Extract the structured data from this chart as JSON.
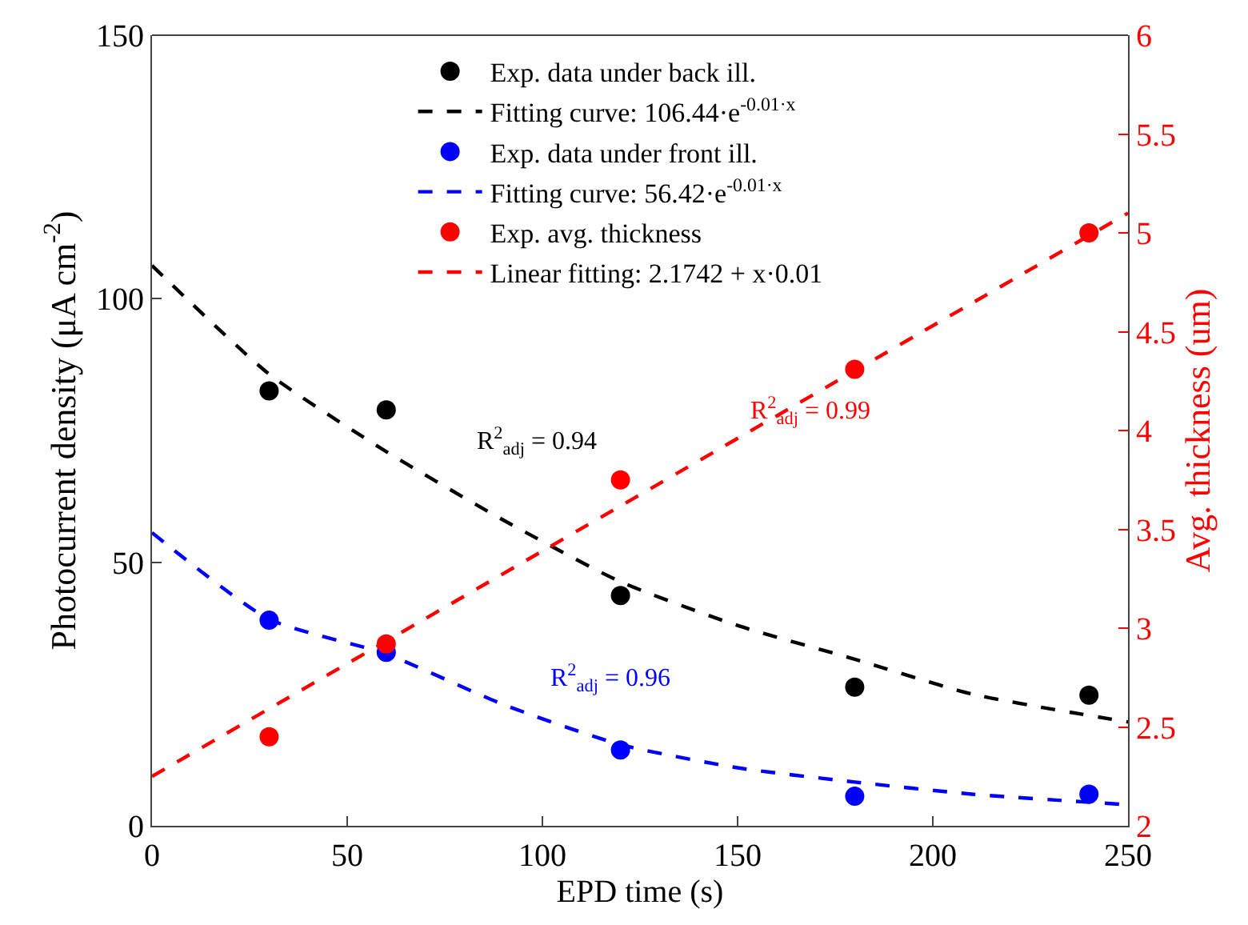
{
  "chart_data": {
    "type": "scatter",
    "xlabel": "EPD time (s)",
    "ylabel": "Photocurrent density (μA cm$^{-2}$)",
    "y2label": "Avg. thickness (um)",
    "xlim": [
      0,
      250
    ],
    "xticks": [
      0,
      50,
      100,
      150,
      200,
      250
    ],
    "ylim": [
      0,
      150
    ],
    "yticks": [
      0,
      50,
      100,
      150
    ],
    "y2lim": [
      2,
      6
    ],
    "y2ticks": [
      2,
      {
        "value": 2.5,
        "label": "2.5"
      },
      3,
      {
        "value": 3.5,
        "label": "3.5"
      },
      4,
      {
        "value": 4.5,
        "label": "4.5"
      },
      5,
      {
        "value": 5.5,
        "label": "5.5"
      },
      6
    ],
    "legend": "top",
    "series": [
      {
        "name": "Exp. data under back ill.",
        "marker": "circle",
        "color": "#000000",
        "x": [
          30,
          60,
          120,
          180,
          240
        ],
        "values": [
          82.5,
          78.9,
          43.7,
          26.3,
          24.8
        ]
      },
      {
        "name": "Fitting curve: 106.44·e$^{-0.01·x}$",
        "type": "line",
        "marker": "none",
        "line_style": "dashed",
        "color": "#000000",
        "x": [
          0,
          30,
          60,
          90,
          120,
          150,
          180,
          210,
          250
        ],
        "values": [
          106.3,
          85.7,
          71,
          58,
          46.3,
          38,
          31.6,
          25,
          19.7
        ]
      },
      {
        "name": "Exp. data under front ill.",
        "marker": "circle",
        "color": "#0000ff",
        "x": [
          30,
          60,
          120,
          180,
          240
        ],
        "values": [
          39.0,
          32.9,
          14.4,
          5.6,
          6.0
        ]
      },
      {
        "name": "Fitting curve: 56.42·e$^{-0.01·x}$",
        "type": "line",
        "marker": "none",
        "line_style": "dashed",
        "color": "#0000ff",
        "x": [
          0,
          30,
          60,
          90,
          120,
          150,
          180,
          210,
          250
        ],
        "values": [
          55.6,
          39.2,
          32.6,
          23,
          15.4,
          11,
          8.3,
          6,
          4.0
        ]
      },
      {
        "name": "Exp. avg. thickness",
        "marker": "circle",
        "color": "#ff0000",
        "axis": "y2",
        "x": [
          30,
          60,
          120,
          180,
          240
        ],
        "values": [
          2.45,
          2.92,
          3.75,
          4.31,
          5.0
        ]
      },
      {
        "name": "Linear fitting: 2.1742 + x·0.01",
        "type": "line",
        "marker": "none",
        "line_style": "dashed",
        "color": "#ff0000",
        "axis": "y2",
        "x": [
          0,
          100,
          250
        ],
        "values": [
          2.25,
          3.39,
          5.1
        ]
      }
    ],
    "annotations": [
      "R$^{2}$$_{adj}$ = 0.94",
      "R$^{2}$$_{adj}$ = 0.96",
      "R$^{2}$$_{adj}$ = 0.99"
    ]
  }
}
